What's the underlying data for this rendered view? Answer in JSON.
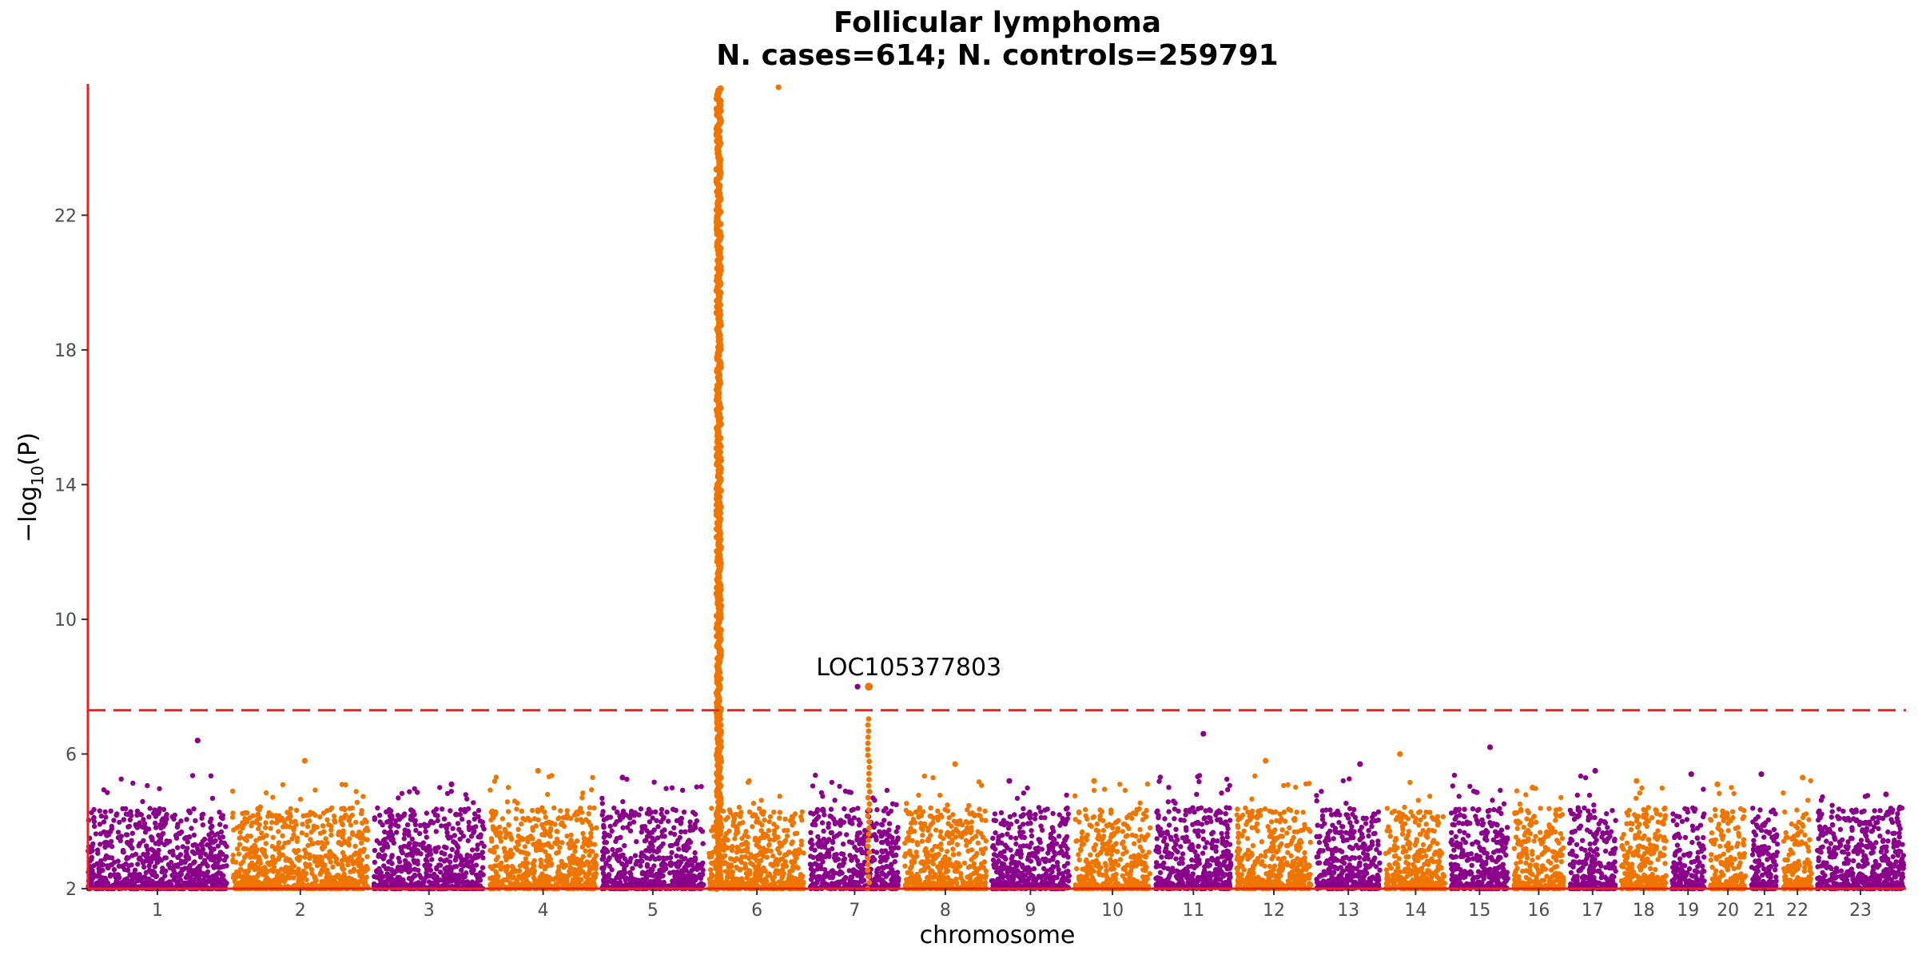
{
  "chart_data": {
    "type": "scatter",
    "subtype": "manhattan",
    "title": "Follicular lymphoma",
    "subtitle": "N. cases=614; N. controls=259791",
    "xlabel": "chromosome",
    "ylabel_parts": {
      "prefix": "−log",
      "subscript": "10",
      "suffix": "(P)"
    },
    "yticks": [
      2,
      6,
      10,
      14,
      18,
      22
    ],
    "ylim": [
      2,
      25.9
    ],
    "significance_line": 7.3,
    "chromosome_labels": [
      "1",
      "2",
      "3",
      "4",
      "5",
      "6",
      "7",
      "8",
      "9",
      "10",
      "11",
      "12",
      "13",
      "14",
      "15",
      "16",
      "17",
      "18",
      "19",
      "20",
      "21",
      "22",
      "23"
    ],
    "chromosome_widths": [
      249,
      243,
      198,
      191,
      182,
      171,
      159,
      146,
      139,
      135,
      135,
      133,
      114,
      107,
      102,
      90,
      83,
      80,
      59,
      64,
      47,
      51,
      155
    ],
    "chromosome_max": [
      6.4,
      5.8,
      5.1,
      5.5,
      5.3,
      25.8,
      8.0,
      5.7,
      5.2,
      5.2,
      6.6,
      5.8,
      5.7,
      6.0,
      6.2,
      5.0,
      5.5,
      5.2,
      5.4,
      5.1,
      5.4,
      5.3,
      4.8
    ],
    "colors": {
      "odd": "#8b008b",
      "even": "#ee7600",
      "threshold": "#e8231c",
      "axis": "#e8231c"
    },
    "grid": false,
    "annotations": [
      {
        "label": "LOC105377803",
        "chromosome": "7",
        "position_fraction": 0.66,
        "y": 8.0
      }
    ]
  }
}
